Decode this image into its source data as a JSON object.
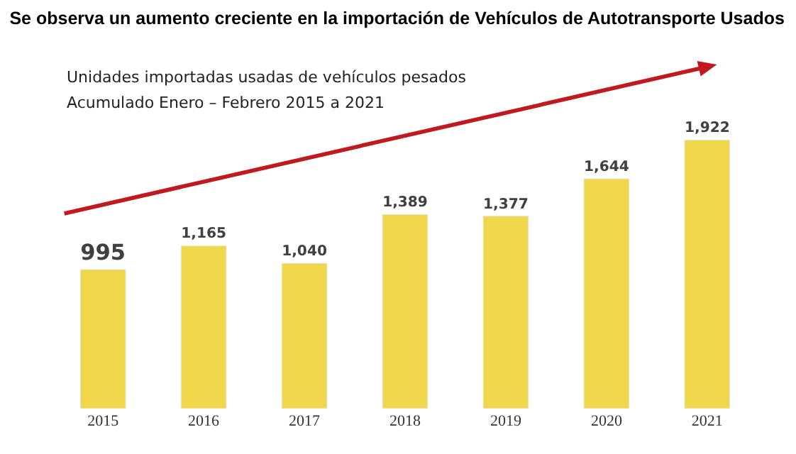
{
  "chart_data": {
    "type": "bar",
    "title": "Se observa un aumento creciente en la importación de Vehículos de Autotransporte Usados",
    "annotations": [
      "Unidades importadas usadas de vehículos pesados",
      "Acumulado Enero – Febrero 2015 a 2021"
    ],
    "categories": [
      "2015",
      "2016",
      "2017",
      "2018",
      "2019",
      "2020",
      "2021"
    ],
    "values": [
      995,
      1165,
      1040,
      1389,
      1377,
      1644,
      1922
    ],
    "color": "#efd64a",
    "data_labels": true,
    "value_labels": [
      "995",
      "1,165",
      "1,040",
      "1,389",
      "1,377",
      "1,644",
      "1,922"
    ]
  }
}
